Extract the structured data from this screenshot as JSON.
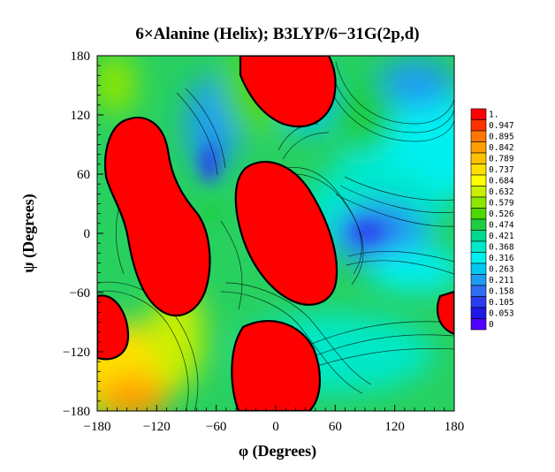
{
  "chart_data": {
    "type": "heatmap",
    "title": "6×Alanine (Helix); B3LYP/6−31G(2p,d)",
    "xlabel": "φ (Degrees)",
    "ylabel": "ψ (Degrees)",
    "xlim": [
      -180,
      180
    ],
    "ylim": [
      -180,
      180
    ],
    "xticks": [
      -180,
      -120,
      -60,
      0,
      60,
      120,
      180
    ],
    "yticks": [
      180,
      120,
      60,
      0,
      -60,
      -120,
      -180
    ],
    "xtick_labels": [
      "−180",
      "−120",
      "−60",
      "0",
      "60",
      "120",
      "180"
    ],
    "ytick_labels": [
      "180",
      "120",
      "60",
      "0",
      "−60",
      "−120",
      "−180"
    ],
    "colorbar": {
      "levels": [
        1.0,
        0.947,
        0.895,
        0.842,
        0.789,
        0.737,
        0.684,
        0.632,
        0.579,
        0.526,
        0.474,
        0.421,
        0.368,
        0.316,
        0.263,
        0.211,
        0.158,
        0.105,
        0.053,
        0
      ],
      "labels": [
        "1.",
        "0.947",
        "0.895",
        "0.842",
        "0.789",
        "0.737",
        "0.684",
        "0.632",
        "0.579",
        "0.526",
        "0.474",
        "0.421",
        "0.368",
        "0.316",
        "0.263",
        "0.211",
        "0.158",
        "0.105",
        "0.053",
        "0"
      ],
      "colors": [
        "#ff0000",
        "#ff3300",
        "#ff7700",
        "#ff9f00",
        "#ffc000",
        "#ffe000",
        "#ffff00",
        "#c8f000",
        "#8ce600",
        "#4cd800",
        "#1ece40",
        "#00d890",
        "#00e8c8",
        "#00f0f0",
        "#00c8f0",
        "#1e9cf0",
        "#2e6cf0",
        "#2a3cf0",
        "#1e18e8",
        "#5000ff"
      ]
    },
    "grid": false
  }
}
